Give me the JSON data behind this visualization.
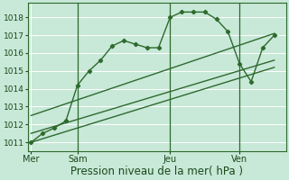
{
  "bg_color": "#c8e8d8",
  "grid_color": "#ffffff",
  "line_color": "#2d6a2d",
  "xlabel": "Pression niveau de la mer( hPa )",
  "xlabel_fontsize": 8.5,
  "ylim": [
    1010.5,
    1018.8
  ],
  "yticks": [
    1011,
    1012,
    1013,
    1014,
    1015,
    1016,
    1017,
    1018
  ],
  "day_labels": [
    "Mer",
    "Sam",
    "Jeu",
    "Ven"
  ],
  "day_positions": [
    0,
    4,
    12,
    18
  ],
  "xlim": [
    -0.3,
    22
  ],
  "main_x": [
    0,
    1,
    2,
    3,
    4,
    5,
    6,
    7,
    8,
    9,
    10,
    11,
    12,
    13,
    14,
    15,
    16,
    17,
    18,
    19,
    20,
    21
  ],
  "main_y": [
    1011.0,
    1011.5,
    1011.8,
    1012.2,
    1014.2,
    1015.0,
    1015.6,
    1016.4,
    1016.7,
    1016.5,
    1016.3,
    1016.3,
    1018.0,
    1018.3,
    1018.3,
    1018.3,
    1017.9,
    1017.2,
    1015.4,
    1014.4,
    1016.3,
    1017.0
  ],
  "line2_x": [
    0,
    21
  ],
  "line2_y": [
    1011.0,
    1015.2
  ],
  "line3_x": [
    0,
    21
  ],
  "line3_y": [
    1011.5,
    1015.6
  ],
  "line4_x": [
    0,
    21
  ],
  "line4_y": [
    1012.5,
    1017.1
  ],
  "vline_positions": [
    4,
    12,
    18
  ]
}
